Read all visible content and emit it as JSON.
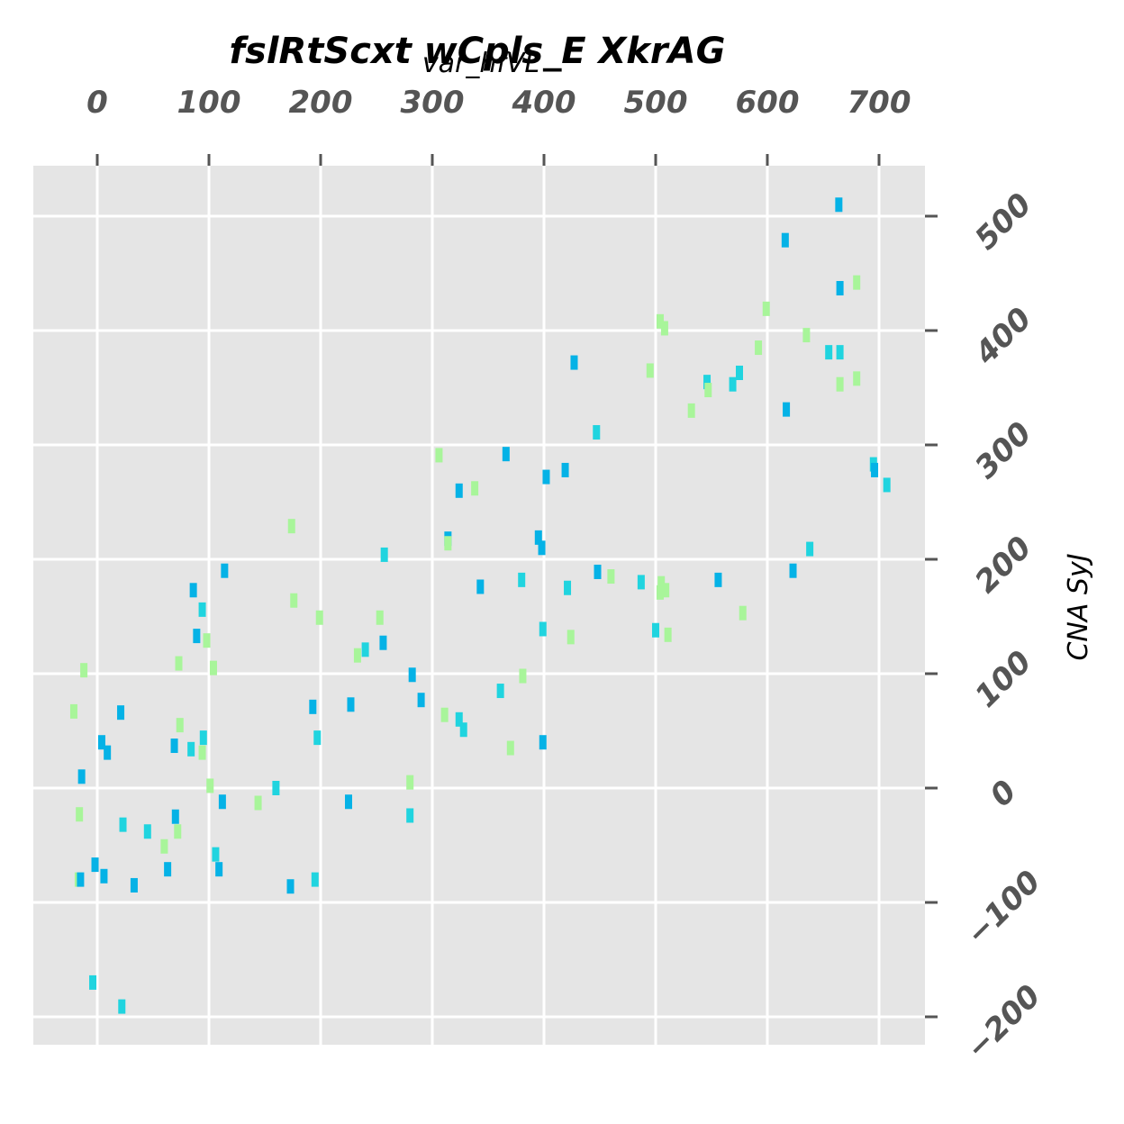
{
  "chart_data": {
    "type": "scatter",
    "title": "fslRtScxt wCpls_E XkrAG",
    "xlabel": "var_hfVL",
    "ylabel": "CNA SyJ",
    "x_axis_position": "top",
    "y_axis_position": "right",
    "xlim": [
      -57,
      740
    ],
    "ylim": [
      -225,
      542
    ],
    "x_ticks": [
      0,
      100,
      200,
      300,
      400,
      500,
      600,
      700
    ],
    "y_ticks": [
      -200,
      -100,
      0,
      100,
      200,
      300,
      400,
      500
    ],
    "x_tick_labels": [
      "0",
      "100",
      "200",
      "300",
      "400",
      "500",
      "600",
      "700"
    ],
    "y_tick_labels": [
      "−200",
      "−100",
      "0",
      "100",
      "200",
      "300",
      "400",
      "500"
    ],
    "grid": true,
    "legend": "none",
    "colors": {
      "background": "#e5e5e5",
      "grid": "#ffffff",
      "tick": "#555555",
      "series": [
        "#05b2e6",
        "#20d4df",
        "#a8f59a"
      ]
    },
    "points": [
      [
        -17,
        -80,
        2
      ],
      [
        -16,
        -23,
        2
      ],
      [
        -14,
        10,
        0
      ],
      [
        -12,
        103,
        2
      ],
      [
        -21,
        67,
        2
      ],
      [
        -15,
        -80,
        0
      ],
      [
        -2,
        -67,
        0
      ],
      [
        -4,
        -170,
        1
      ],
      [
        4,
        40,
        0
      ],
      [
        6,
        -77,
        0
      ],
      [
        9,
        31,
        0
      ],
      [
        21,
        66,
        0
      ],
      [
        23,
        -32,
        1
      ],
      [
        22,
        -191,
        1
      ],
      [
        33,
        -85,
        0
      ],
      [
        45,
        -38,
        1
      ],
      [
        60,
        -51,
        2
      ],
      [
        63,
        -71,
        0
      ],
      [
        69,
        37,
        0
      ],
      [
        70,
        -25,
        0
      ],
      [
        72,
        -38,
        2
      ],
      [
        73,
        109,
        2
      ],
      [
        74,
        55,
        2
      ],
      [
        84,
        34,
        1
      ],
      [
        86,
        173,
        0
      ],
      [
        89,
        133,
        0
      ],
      [
        94,
        156,
        1
      ],
      [
        95,
        44,
        1
      ],
      [
        94,
        31,
        2
      ],
      [
        98,
        129,
        2
      ],
      [
        101,
        2,
        2
      ],
      [
        104,
        105,
        2
      ],
      [
        106,
        -58,
        1
      ],
      [
        109,
        -71,
        0
      ],
      [
        112,
        -12,
        0
      ],
      [
        114,
        190,
        0
      ],
      [
        144,
        -13,
        2
      ],
      [
        160,
        0,
        1
      ],
      [
        173,
        -86,
        0
      ],
      [
        174,
        229,
        2
      ],
      [
        176,
        164,
        2
      ],
      [
        193,
        71,
        0
      ],
      [
        195,
        -80,
        1
      ],
      [
        197,
        44,
        1
      ],
      [
        199,
        149,
        2
      ],
      [
        225,
        -12,
        0
      ],
      [
        227,
        73,
        0
      ],
      [
        233,
        116,
        2
      ],
      [
        240,
        121,
        1
      ],
      [
        253,
        149,
        2
      ],
      [
        256,
        127,
        0
      ],
      [
        257,
        204,
        1
      ],
      [
        280,
        5,
        2
      ],
      [
        280,
        -24,
        1
      ],
      [
        282,
        99,
        0
      ],
      [
        290,
        77,
        0
      ],
      [
        306,
        291,
        2
      ],
      [
        311,
        64,
        2
      ],
      [
        314,
        218,
        0
      ],
      [
        314,
        214,
        2
      ],
      [
        324,
        260,
        0
      ],
      [
        324,
        60,
        1
      ],
      [
        328,
        51,
        1
      ],
      [
        338,
        262,
        2
      ],
      [
        343,
        176,
        0
      ],
      [
        361,
        85,
        1
      ],
      [
        366,
        292,
        0
      ],
      [
        370,
        35,
        2
      ],
      [
        380,
        182,
        1
      ],
      [
        381,
        98,
        2
      ],
      [
        395,
        219,
        0
      ],
      [
        398,
        210,
        0
      ],
      [
        399,
        40,
        0
      ],
      [
        399,
        139,
        1
      ],
      [
        402,
        272,
        0
      ],
      [
        419,
        278,
        0
      ],
      [
        421,
        175,
        1
      ],
      [
        424,
        132,
        2
      ],
      [
        427,
        372,
        0
      ],
      [
        447,
        311,
        1
      ],
      [
        448,
        189,
        0
      ],
      [
        460,
        185,
        2
      ],
      [
        487,
        180,
        1
      ],
      [
        495,
        365,
        2
      ],
      [
        500,
        138,
        1
      ],
      [
        504,
        408,
        2
      ],
      [
        504,
        171,
        2
      ],
      [
        508,
        402,
        2
      ],
      [
        505,
        179,
        2
      ],
      [
        509,
        173,
        2
      ],
      [
        511,
        134,
        2
      ],
      [
        532,
        330,
        2
      ],
      [
        546,
        355,
        1
      ],
      [
        547,
        348,
        2
      ],
      [
        556,
        182,
        0
      ],
      [
        569,
        353,
        1
      ],
      [
        575,
        363,
        1
      ],
      [
        578,
        153,
        2
      ],
      [
        592,
        385,
        2
      ],
      [
        599,
        419,
        2
      ],
      [
        616,
        479,
        0
      ],
      [
        617,
        331,
        0
      ],
      [
        623,
        190,
        0
      ],
      [
        635,
        396,
        2
      ],
      [
        638,
        209,
        1
      ],
      [
        655,
        381,
        1
      ],
      [
        664,
        510,
        0
      ],
      [
        665,
        437,
        0
      ],
      [
        665,
        381,
        1
      ],
      [
        665,
        353,
        2
      ],
      [
        680,
        442,
        2
      ],
      [
        680,
        358,
        2
      ],
      [
        695,
        283,
        1
      ],
      [
        696,
        278,
        0
      ],
      [
        707,
        265,
        1
      ]
    ]
  }
}
